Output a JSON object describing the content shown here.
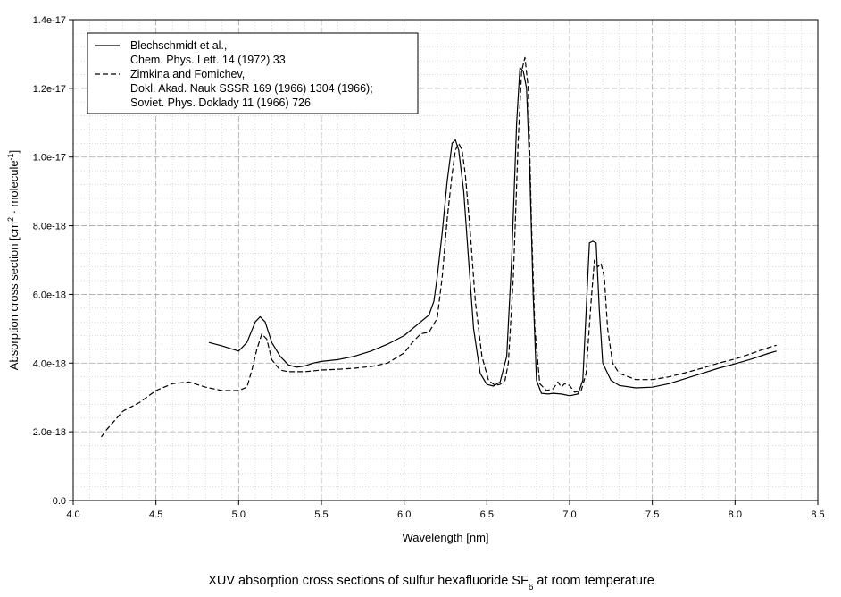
{
  "chart_data": {
    "type": "line",
    "title": "",
    "caption": {
      "prefix": "XUV absorption cross sections of sulfur hexafluoride SF",
      "subscript": "6",
      "suffix": " at room temperature"
    },
    "xlabel": "Wavelength [nm]",
    "ylabel": {
      "main": "Absorption cross section [cm",
      "sup1": "2",
      "middle": " · molecule",
      "sup2": "-1",
      "end": "]"
    },
    "xlim": [
      4.0,
      8.5
    ],
    "ylim": [
      0,
      1.4e-17
    ],
    "x_ticks": [
      4.0,
      4.5,
      5.0,
      5.5,
      6.0,
      6.5,
      7.0,
      7.5,
      8.0,
      8.5
    ],
    "x_tick_labels": [
      "4.0",
      "4.5",
      "5.0",
      "5.5",
      "6.0",
      "6.5",
      "7.0",
      "7.5",
      "8.0",
      "8.5"
    ],
    "y_ticks": [
      0,
      2e-18,
      4e-18,
      6e-18,
      8e-18,
      1e-17,
      1.2e-17,
      1.4e-17
    ],
    "y_tick_labels": [
      "0.0",
      "2.0e-18",
      "4.0e-18",
      "6.0e-18",
      "8.0e-18",
      "1.0e-17",
      "1.2e-17",
      "1.4e-17"
    ],
    "grid": true,
    "minor_grid": true,
    "legend_position": "top-left",
    "series": [
      {
        "style": "solid",
        "color": "#000000",
        "legend_lines": [
          "Blechschmidt et al.,",
          "Chem. Phys. Lett. 14 (1972) 33"
        ],
        "x": [
          4.82,
          4.9,
          5.0,
          5.05,
          5.1,
          5.13,
          5.16,
          5.2,
          5.25,
          5.3,
          5.35,
          5.4,
          5.45,
          5.5,
          5.6,
          5.7,
          5.8,
          5.9,
          6.0,
          6.05,
          6.1,
          6.15,
          6.18,
          6.2,
          6.23,
          6.26,
          6.29,
          6.31,
          6.33,
          6.36,
          6.39,
          6.42,
          6.46,
          6.5,
          6.54,
          6.58,
          6.62,
          6.65,
          6.68,
          6.7,
          6.72,
          6.74,
          6.76,
          6.78,
          6.8,
          6.83,
          6.87,
          6.9,
          6.95,
          7.0,
          7.05,
          7.08,
          7.1,
          7.12,
          7.14,
          7.16,
          7.18,
          7.2,
          7.25,
          7.3,
          7.4,
          7.5,
          7.6,
          7.7,
          7.8,
          7.9,
          8.0,
          8.1,
          8.2,
          8.25
        ],
        "y": [
          4.6e-18,
          4.5e-18,
          4.35e-18,
          4.6e-18,
          5.2e-18,
          5.35e-18,
          5.2e-18,
          4.6e-18,
          4.2e-18,
          3.95e-18,
          3.88e-18,
          3.92e-18,
          4e-18,
          4.05e-18,
          4.1e-18,
          4.2e-18,
          4.35e-18,
          4.55e-18,
          4.8e-18,
          5e-18,
          5.2e-18,
          5.4e-18,
          5.8e-18,
          6.5e-18,
          7.8e-18,
          9.3e-18,
          1.04e-17,
          1.05e-17,
          1.02e-17,
          9e-18,
          7e-18,
          5e-18,
          3.7e-18,
          3.38e-18,
          3.33e-18,
          3.45e-18,
          4.2e-18,
          7e-18,
          1.1e-17,
          1.26e-17,
          1.25e-17,
          1.2e-17,
          9.5e-18,
          6e-18,
          3.5e-18,
          3.12e-18,
          3.1e-18,
          3.12e-18,
          3.1e-18,
          3.05e-18,
          3.1e-18,
          3.5e-18,
          5.5e-18,
          7.5e-18,
          7.55e-18,
          7.5e-18,
          5.5e-18,
          4e-18,
          3.5e-18,
          3.35e-18,
          3.28e-18,
          3.3e-18,
          3.4e-18,
          3.55e-18,
          3.7e-18,
          3.85e-18,
          3.98e-18,
          4.12e-18,
          4.28e-18,
          4.35e-18
        ]
      },
      {
        "style": "dashed",
        "color": "#000000",
        "legend_lines": [
          "Zimkina and Fomichev,",
          "Dokl. Akad. Nauk SSSR 169 (1966) 1304 (1966);",
          "Soviet. Phys. Doklady 11 (1966) 726"
        ],
        "x": [
          4.17,
          4.2,
          4.3,
          4.4,
          4.5,
          4.6,
          4.7,
          4.8,
          4.9,
          5.0,
          5.05,
          5.08,
          5.11,
          5.14,
          5.17,
          5.2,
          5.25,
          5.3,
          5.4,
          5.5,
          5.6,
          5.7,
          5.8,
          5.9,
          6.0,
          6.05,
          6.1,
          6.15,
          6.2,
          6.23,
          6.26,
          6.29,
          6.31,
          6.33,
          6.35,
          6.37,
          6.4,
          6.43,
          6.47,
          6.51,
          6.55,
          6.58,
          6.61,
          6.63,
          6.66,
          6.69,
          6.71,
          6.73,
          6.75,
          6.77,
          6.79,
          6.82,
          6.86,
          6.9,
          6.93,
          6.95,
          6.97,
          7.0,
          7.03,
          7.07,
          7.1,
          7.13,
          7.15,
          7.17,
          7.19,
          7.21,
          7.23,
          7.26,
          7.3,
          7.4,
          7.5,
          7.6,
          7.7,
          7.8,
          7.9,
          8.0,
          8.1,
          8.2,
          8.25
        ],
        "y": [
          1.85e-18,
          2.05e-18,
          2.6e-18,
          2.85e-18,
          3.2e-18,
          3.4e-18,
          3.45e-18,
          3.3e-18,
          3.2e-18,
          3.2e-18,
          3.3e-18,
          3.8e-18,
          4.4e-18,
          4.85e-18,
          4.7e-18,
          4.1e-18,
          3.8e-18,
          3.75e-18,
          3.75e-18,
          3.8e-18,
          3.82e-18,
          3.85e-18,
          3.9e-18,
          4e-18,
          4.3e-18,
          4.6e-18,
          4.85e-18,
          4.9e-18,
          5.3e-18,
          6.5e-18,
          8.2e-18,
          9.5e-18,
          1.02e-17,
          1.04e-17,
          1.02e-17,
          9.5e-18,
          7.8e-18,
          5.8e-18,
          4.2e-18,
          3.5e-18,
          3.35e-18,
          3.38e-18,
          3.5e-18,
          4e-18,
          6.5e-18,
          1.05e-17,
          1.25e-17,
          1.29e-17,
          1.2e-17,
          8e-18,
          5e-18,
          3.4e-18,
          3.2e-18,
          3.25e-18,
          3.45e-18,
          3.3e-18,
          3.4e-18,
          3.35e-18,
          3.15e-18,
          3.2e-18,
          3.7e-18,
          5.8e-18,
          7e-18,
          6.8e-18,
          6.9e-18,
          6.5e-18,
          5e-18,
          4e-18,
          3.7e-18,
          3.52e-18,
          3.52e-18,
          3.6e-18,
          3.72e-18,
          3.85e-18,
          4e-18,
          4.12e-18,
          4.28e-18,
          4.45e-18,
          4.52e-18
        ]
      }
    ]
  }
}
